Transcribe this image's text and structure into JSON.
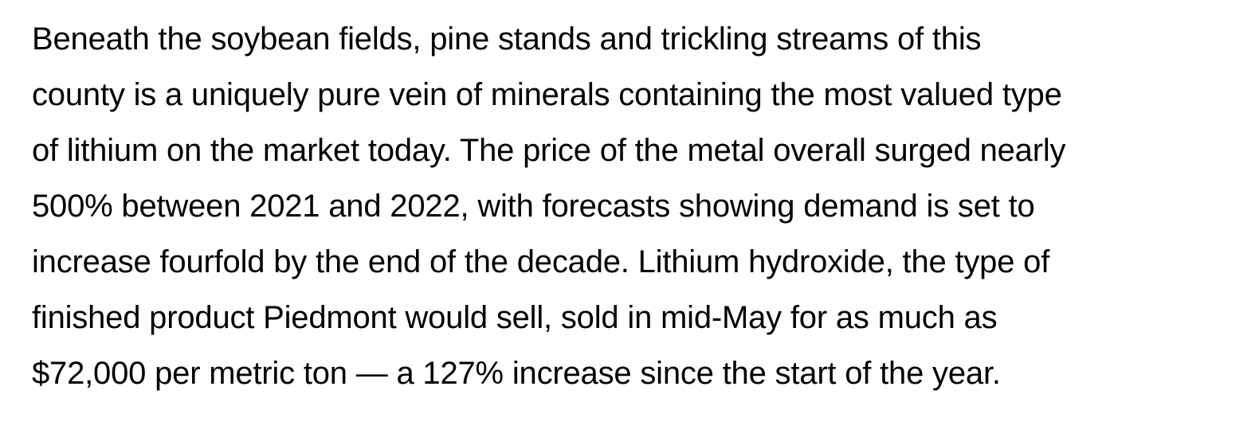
{
  "article": {
    "paragraph_lines": [
      "Beneath the soybean fields, pine stands and trickling streams of this",
      "county is a uniquely pure vein of minerals containing the most valued type",
      "of lithium on the market today. The price of the metal overall surged nearly",
      "500% between 2021 and 2022, with forecasts showing demand is set to",
      "increase fourfold by the end of the decade. Lithium hydroxide, the type of",
      "finished product Piedmont would sell, sold in mid-May for as much as",
      "$72,000 per metric ton — a 127% increase since the start of the year."
    ]
  }
}
